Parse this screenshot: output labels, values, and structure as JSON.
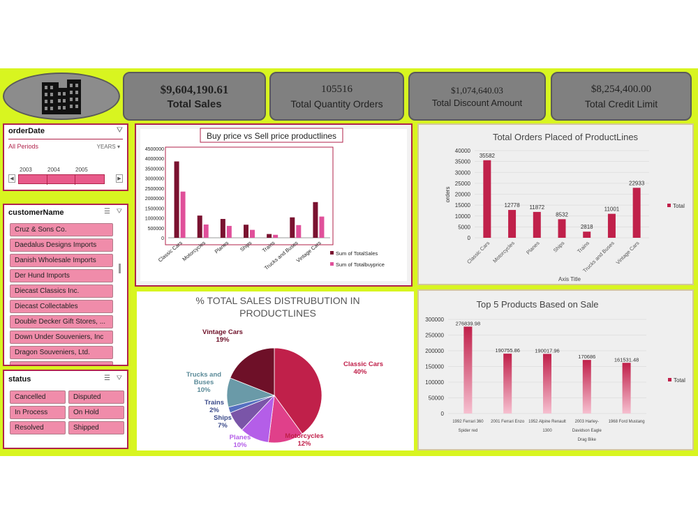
{
  "kpis": [
    {
      "value": "$9,604,190.61",
      "label": "Total Sales"
    },
    {
      "value": "105516",
      "label": "Total Quantity Orders"
    },
    {
      "value": "$1,074,640.03",
      "label": "Total Discount Amount"
    },
    {
      "value": "$8,254,400.00",
      "label": "Total Credit Limit"
    }
  ],
  "order_date_slicer": {
    "title": "orderDate",
    "period_label": "All Periods",
    "level_label": "YEARS",
    "years": [
      "2003",
      "2004",
      "2005"
    ]
  },
  "customer_slicer": {
    "title": "customerName",
    "items": [
      "Cruz & Sons Co.",
      "Daedalus Designs Imports",
      "Danish Wholesale Imports",
      "Der Hund Imports",
      "Diecast Classics Inc.",
      "Diecast Collectables",
      "Double Decker Gift Stores, ...",
      "Down Under Souveniers, Inc",
      "Dragon Souveniers, Ltd."
    ]
  },
  "status_slicer": {
    "title": "status",
    "items": [
      "Cancelled",
      "Disputed",
      "In Process",
      "On Hold",
      "Resolved",
      "Shipped"
    ]
  },
  "colors": {
    "background": "#d8f520",
    "accent": "#b0224a",
    "sales_bar": "#7a1230",
    "buy_bar": "#e0509a",
    "order_bar": "#c0204a",
    "kpi_bg": "#808080"
  },
  "chart_data": [
    {
      "type": "bar",
      "title": "Buy price vs Sell price productlines",
      "categories": [
        "Classic Cars",
        "Motorcycles",
        "Planes",
        "Ships",
        "Trains",
        "Trucks and Buses",
        "Vintage Cars"
      ],
      "series": [
        {
          "name": "Sum of TotalSales",
          "values": [
            3850000,
            1120000,
            950000,
            660000,
            190000,
            1030000,
            1800000
          ]
        },
        {
          "name": "Sum of Totalbuyprice",
          "values": [
            2330000,
            670000,
            600000,
            400000,
            150000,
            640000,
            1070000
          ]
        }
      ],
      "yticks": [
        "0",
        "500000",
        "1000000",
        "1500000",
        "2000000",
        "2500000",
        "3000000",
        "3500000",
        "4000000",
        "4500000"
      ],
      "ylim": [
        0,
        4500000
      ],
      "legend": "right"
    },
    {
      "type": "bar",
      "title": "Total Orders Placed of ProductLines",
      "categories": [
        "Classic Cars",
        "Motorcycles",
        "Planes",
        "Ships",
        "Trains",
        "Trucks and Buses",
        "Vintage Cars"
      ],
      "series": [
        {
          "name": "Total",
          "values": [
            35582,
            12778,
            11872,
            8532,
            2818,
            11001,
            22933
          ]
        }
      ],
      "yticks": [
        "0",
        "5000",
        "10000",
        "15000",
        "20000",
        "25000",
        "30000",
        "35000",
        "40000"
      ],
      "ylim": [
        0,
        40000
      ],
      "ylabel": "orders",
      "xlabel": "Axis Title",
      "legend": "right"
    },
    {
      "type": "pie",
      "title": "% TOTAL SALES DISTRUBUTION IN PRODUCTLINES",
      "slices": [
        {
          "name": "Classic Cars",
          "pct": "40%",
          "value": 40,
          "color": "#c0204a"
        },
        {
          "name": "Motorcycles",
          "pct": "12%",
          "value": 12,
          "color": "#e0408a"
        },
        {
          "name": "Planes",
          "pct": "10%",
          "value": 10,
          "color": "#b45ee8"
        },
        {
          "name": "Ships",
          "pct": "7%",
          "value": 7,
          "color": "#7a55a8"
        },
        {
          "name": "Trains",
          "pct": "2%",
          "value": 2,
          "color": "#5570c0"
        },
        {
          "name": "Trucks and Buses",
          "pct": "10%",
          "value": 10,
          "color": "#6a9aa8"
        },
        {
          "name": "Vintage Cars",
          "pct": "19%",
          "value": 19,
          "color": "#6e1028"
        }
      ]
    },
    {
      "type": "bar",
      "title": "Top 5 Products Based on Sale",
      "categories": [
        [
          "1992 Ferrari 360",
          "Spider red"
        ],
        [
          "2001 Ferrari Enzo"
        ],
        [
          "1952 Alpine Renault",
          "1300"
        ],
        [
          "2003 Harley-",
          "Davidson Eagle",
          "Drag Bike"
        ],
        [
          "1968 Ford Mustang"
        ]
      ],
      "series": [
        {
          "name": "Total",
          "values": [
            276839.98,
            190755.86,
            190017.96,
            170686,
            161531.48
          ]
        }
      ],
      "labels": [
        "276839.98",
        "190755.86",
        "190017.96",
        "170686",
        "161531.48"
      ],
      "yticks": [
        "0",
        "50000",
        "100000",
        "150000",
        "200000",
        "250000",
        "300000"
      ],
      "ylim": [
        0,
        300000
      ],
      "legend": "right"
    }
  ]
}
